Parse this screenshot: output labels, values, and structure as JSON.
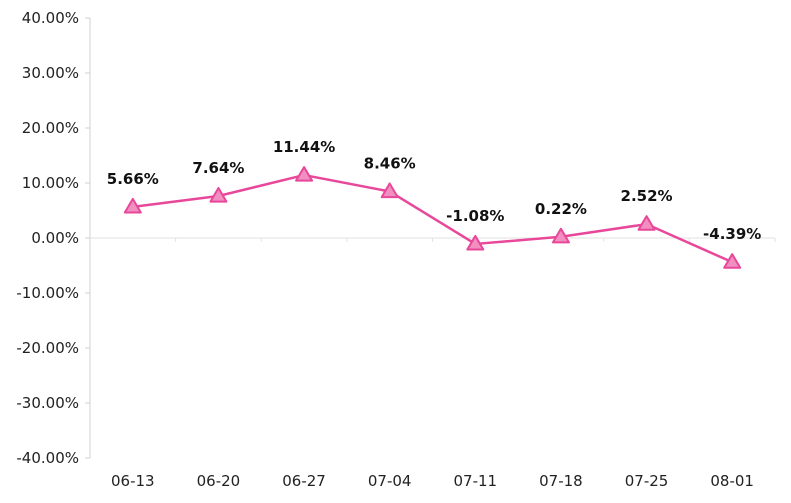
{
  "chart_data": {
    "type": "line",
    "title": "",
    "xlabel": "",
    "ylabel": "",
    "categories": [
      "06-13",
      "06-20",
      "06-27",
      "07-04",
      "07-11",
      "07-18",
      "07-25",
      "08-01"
    ],
    "series": [
      {
        "values": [
          5.66,
          7.64,
          11.44,
          8.46,
          -1.08,
          0.22,
          2.52,
          -4.39
        ],
        "labels": [
          "5.66%",
          "7.64%",
          "11.44%",
          "8.46%",
          "-1.08%",
          "0.22%",
          "2.52%",
          "-4.39%"
        ],
        "color": "#e8479a",
        "marker": "triangle",
        "marker_fill": "#f08fc0"
      }
    ],
    "ylim": [
      -40,
      40
    ],
    "yticks": [
      40,
      30,
      20,
      10,
      0,
      -10,
      -20,
      -30,
      -40
    ],
    "ytick_labels": [
      "40.00%",
      "30.00%",
      "20.00%",
      "10.00%",
      "0.00%",
      "-10.00%",
      "-20.00%",
      "-30.00%",
      "-40.00%"
    ],
    "grid": false,
    "legend": "none"
  }
}
